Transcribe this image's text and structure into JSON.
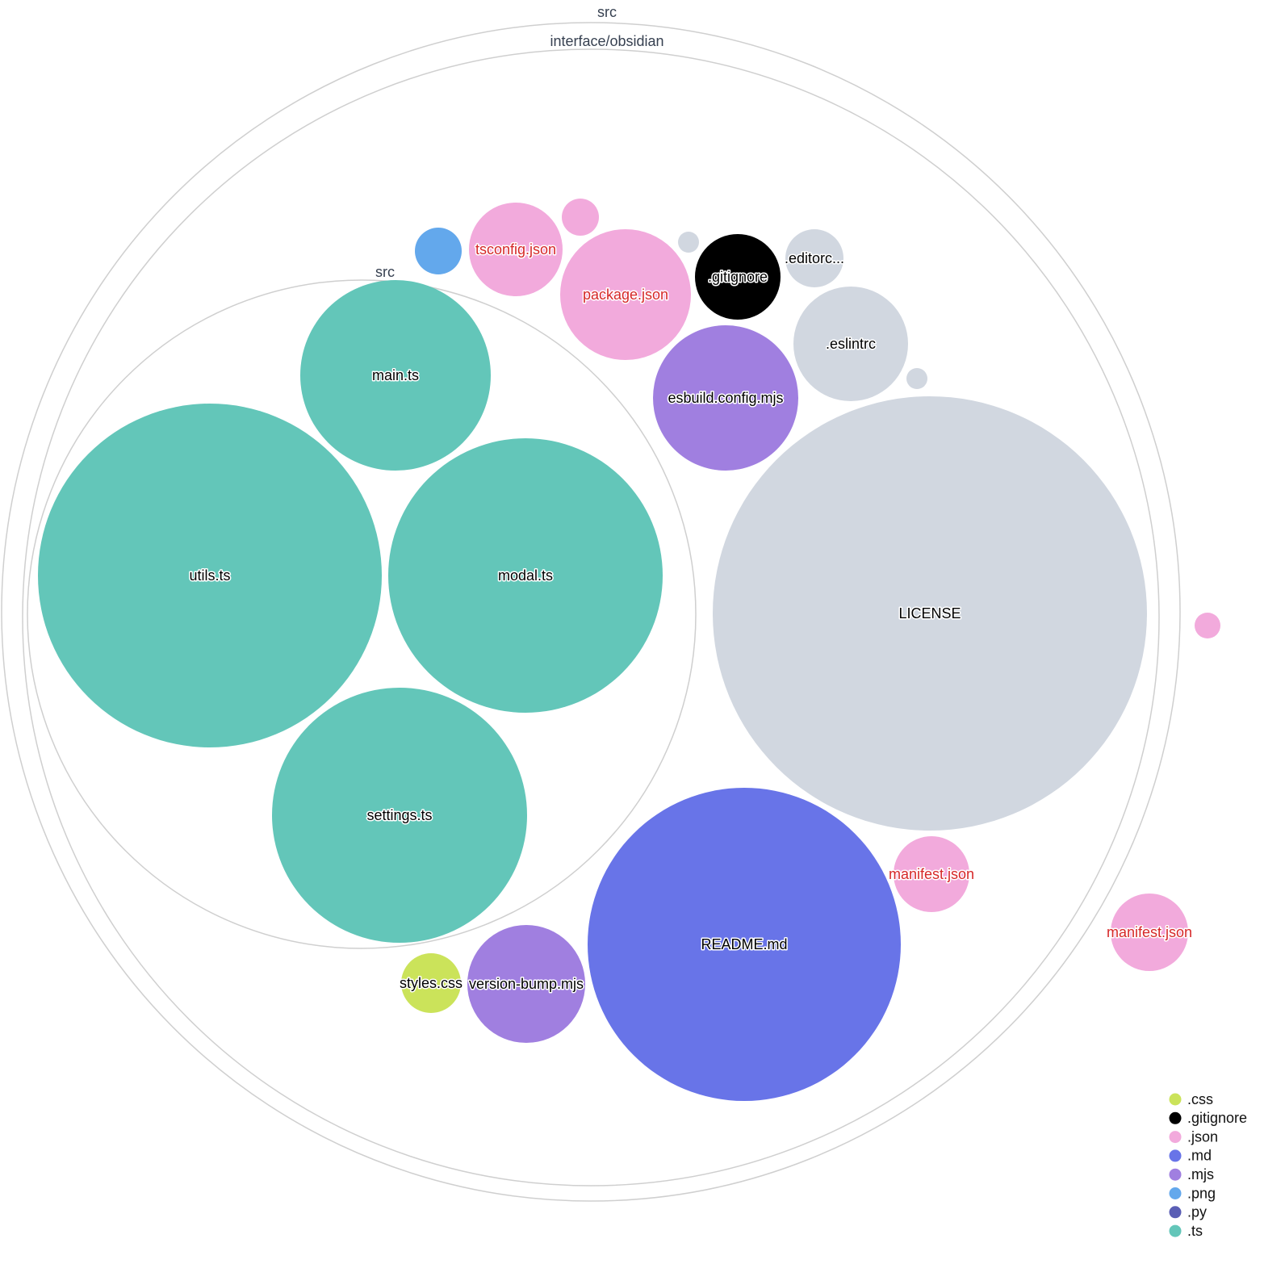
{
  "colors": {
    ".css": "#cbe35a",
    ".gitignore": "#000000",
    ".json": "#f2aadc",
    ".md": "#6874e8",
    ".mjs": "#a07fe0",
    ".png": "#63a8ec",
    ".py": "#5a5eb5",
    ".ts": "#63c6b9",
    "other": "#d1d7e0",
    "json_label": "#d62728"
  },
  "folders": [
    {
      "label": "src"
    },
    {
      "label": "interface/obsidian"
    },
    {
      "label": "src"
    }
  ],
  "files": [
    {
      "label": "main.ts",
      "ext": ".ts"
    },
    {
      "label": "utils.ts",
      "ext": ".ts"
    },
    {
      "label": "modal.ts",
      "ext": ".ts"
    },
    {
      "label": "settings.ts",
      "ext": ".ts"
    },
    {
      "label": "LICENSE",
      "ext": "other"
    },
    {
      "label": "README.md",
      "ext": ".md"
    },
    {
      "label": "esbuild.config.mjs",
      "ext": ".mjs"
    },
    {
      "label": ".eslintrc",
      "ext": "other"
    },
    {
      "label": ".gitignore",
      "ext": ".gitignore"
    },
    {
      "label": ".editorc...",
      "ext": "other"
    },
    {
      "label": "",
      "ext": "other"
    },
    {
      "label": "",
      "ext": "other"
    },
    {
      "label": "package.json",
      "ext": ".json"
    },
    {
      "label": "tsconfig.json",
      "ext": ".json"
    },
    {
      "label": "",
      "ext": ".json"
    },
    {
      "label": "",
      "ext": ".png"
    },
    {
      "label": "manifest.json",
      "ext": ".json"
    },
    {
      "label": "manifest.json",
      "ext": ".json"
    },
    {
      "label": "",
      "ext": ".json"
    },
    {
      "label": "version-bump.mjs",
      "ext": ".mjs"
    },
    {
      "label": "styles.css",
      "ext": ".css"
    }
  ],
  "legend": [
    ".css",
    ".gitignore",
    ".json",
    ".md",
    ".mjs",
    ".png",
    ".py",
    ".ts"
  ]
}
